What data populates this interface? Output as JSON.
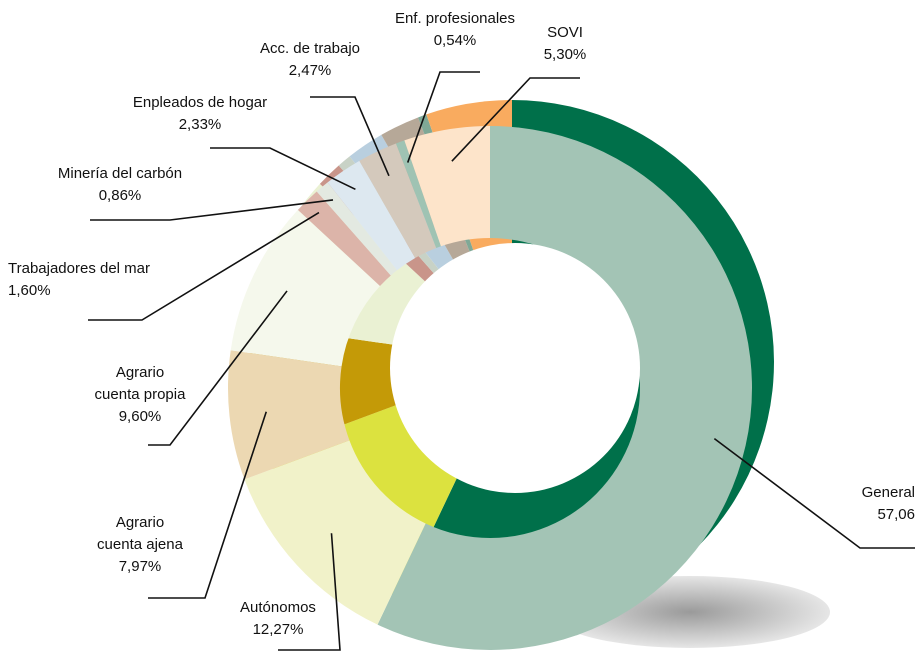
{
  "chart_data": {
    "type": "donut",
    "categories": [
      "General",
      "Autónomos",
      "Agrario\ncuenta ajena",
      "Agrario\ncuenta propia",
      "Trabajadores del mar",
      "Minería del carbón",
      "Enpleados de hogar",
      "Acc. de trabajo",
      "Enf. profesionales",
      "SOVI"
    ],
    "values": [
      57.06,
      12.27,
      7.97,
      9.6,
      1.6,
      0.86,
      2.33,
      2.47,
      0.54,
      5.3
    ],
    "value_labels": [
      "57,06",
      "12,27%",
      "7,97%",
      "9,60%",
      "1,60%",
      "0,86%",
      "2,33%",
      "2,47%",
      "0,54%",
      "5,30%"
    ],
    "colors": [
      "#a3c4b5",
      "#f1f2c9",
      "#ecd8b2",
      "#f5f8ec",
      "#dcb4a9",
      "#e3e9e1",
      "#dde8f0",
      "#d4c9bc",
      "#9fc3b3",
      "#fde4ca"
    ],
    "shade_colors": [
      "#00704a",
      "#dce23f",
      "#c49a07",
      "#eaf1d3",
      "#c9958a",
      "#c8d2c6",
      "#b9cfdf",
      "#b6a898",
      "#7fa896",
      "#f9ab5f"
    ]
  }
}
